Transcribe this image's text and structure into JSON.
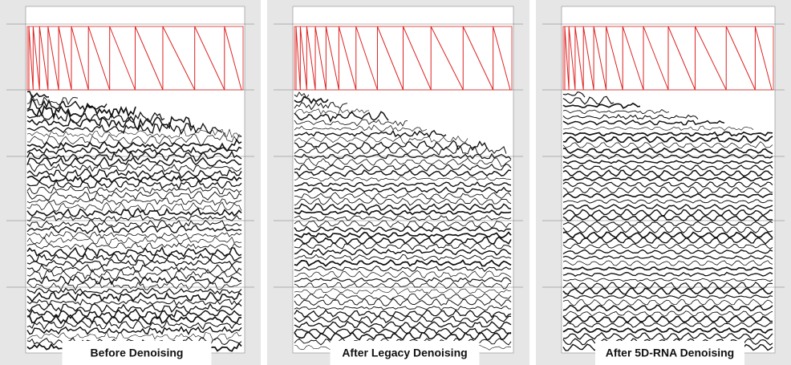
{
  "panels": [
    {
      "caption": "Before Denoising"
    },
    {
      "caption": "After Legacy Denoising"
    },
    {
      "caption": "After 5D-RNA Denoising"
    }
  ]
}
